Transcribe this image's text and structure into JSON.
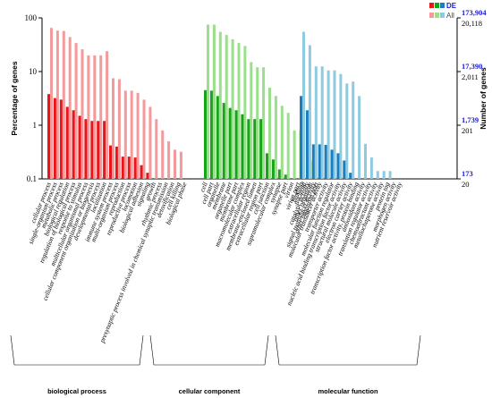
{
  "chart_data": {
    "type": "bar",
    "y_scale": "log",
    "ylim": [
      0.1,
      100
    ],
    "ylabel": "Percentage of genes",
    "ylabel_right": "Number of genes",
    "left_ticks": [
      "100",
      "10",
      "1",
      "0.1"
    ],
    "right_ticks_de": [
      "173,904",
      "17,390",
      "1,739",
      "173"
    ],
    "right_ticks_all": [
      "20,118",
      "2,011",
      "201",
      "20"
    ],
    "legend": [
      {
        "label": "DE",
        "colors": [
          "#e8161b",
          "#18a418",
          "#1a7dbf"
        ]
      },
      {
        "label": "All",
        "colors": [
          "#f49a9a",
          "#9adf8a",
          "#8ecbe0"
        ]
      }
    ],
    "groups": [
      {
        "name": "biological process",
        "color_de": "#e8161b",
        "color_all": "#f49a9a",
        "categories": [
          "cellular process",
          "single-organism process",
          "metabolic process",
          "biological regulation",
          "regulation of biological process",
          "response to stimulus",
          "multicellular organismal process",
          "cellular component organization or biogenesis",
          "developmental process",
          "localization",
          "immune system process",
          "multi-organism process",
          "reproduction",
          "reproductive process",
          "locomotion",
          "biological adhesion",
          "signaling",
          "growth",
          "rhythmic process",
          "presynaptic process involved in chemical synaptic transmission",
          "detoxification",
          "cell killing",
          "biological phase"
        ],
        "de": [
          3.8,
          3.2,
          3.0,
          2.2,
          1.9,
          1.5,
          1.3,
          1.2,
          1.2,
          1.2,
          0.42,
          0.4,
          0.26,
          0.26,
          0.25,
          0.18,
          0.13,
          null,
          null,
          null,
          null,
          null,
          null
        ],
        "all": [
          65,
          58,
          57,
          44,
          34,
          26,
          20,
          20,
          20,
          24,
          7.5,
          7.2,
          4.4,
          4.4,
          4.0,
          3.0,
          2.2,
          1.3,
          0.8,
          0.5,
          0.35,
          0.32,
          null
        ]
      },
      {
        "name": "cellular component",
        "color_de": "#18a418",
        "color_all": "#9adf8a",
        "categories": [
          "cell",
          "cell part",
          "organelle",
          "membrane",
          "organelle part",
          "membrane part",
          "macromolecular complex",
          "extracellular region",
          "membrane-enclosed lumen",
          "extracellular region part",
          "cell junction",
          "supramolecular complex",
          "synapse",
          "synapse part",
          "virion",
          "virion part",
          "nucleoid",
          "other organism",
          "other organism part"
        ],
        "de": [
          4.5,
          4.4,
          3.5,
          2.6,
          2.1,
          1.9,
          1.6,
          1.3,
          1.3,
          1.3,
          0.3,
          0.23,
          0.15,
          0.12,
          null,
          null,
          null,
          null,
          null
        ],
        "all": [
          75,
          75,
          55,
          48,
          40,
          34,
          30,
          15,
          12,
          12,
          5.0,
          3.5,
          2.3,
          1.7,
          0.8,
          0.8,
          null,
          0.22,
          null
        ]
      },
      {
        "name": "molecular function",
        "color_de": "#1a7dbf",
        "color_all": "#8ecbe0",
        "categories": [
          "binding",
          "catalytic activity",
          "signal transducer activity",
          "molecular transducer activity",
          "transporter activity",
          "molecular function regulator",
          "nucleic acid binding transcription factor activity",
          "structural molecule activity",
          "electron carrier activity",
          "transcription factor activity, protein binding",
          "antioxidant activity",
          "translation regulator activity",
          "chemoattractant activity",
          "metallochaperone activity",
          "protein tag",
          "morphogen activity",
          "nutrient reservoir activity"
        ],
        "de": [
          3.5,
          1.9,
          0.44,
          0.44,
          0.43,
          0.35,
          0.3,
          0.22,
          0.13,
          null,
          null,
          null,
          null,
          null,
          null,
          null,
          null
        ],
        "all": [
          55,
          31,
          12.5,
          12.5,
          10.5,
          10.5,
          9.0,
          6.0,
          6.5,
          3.5,
          0.45,
          0.25,
          0.14,
          0.14,
          0.14,
          null,
          null
        ]
      }
    ]
  }
}
